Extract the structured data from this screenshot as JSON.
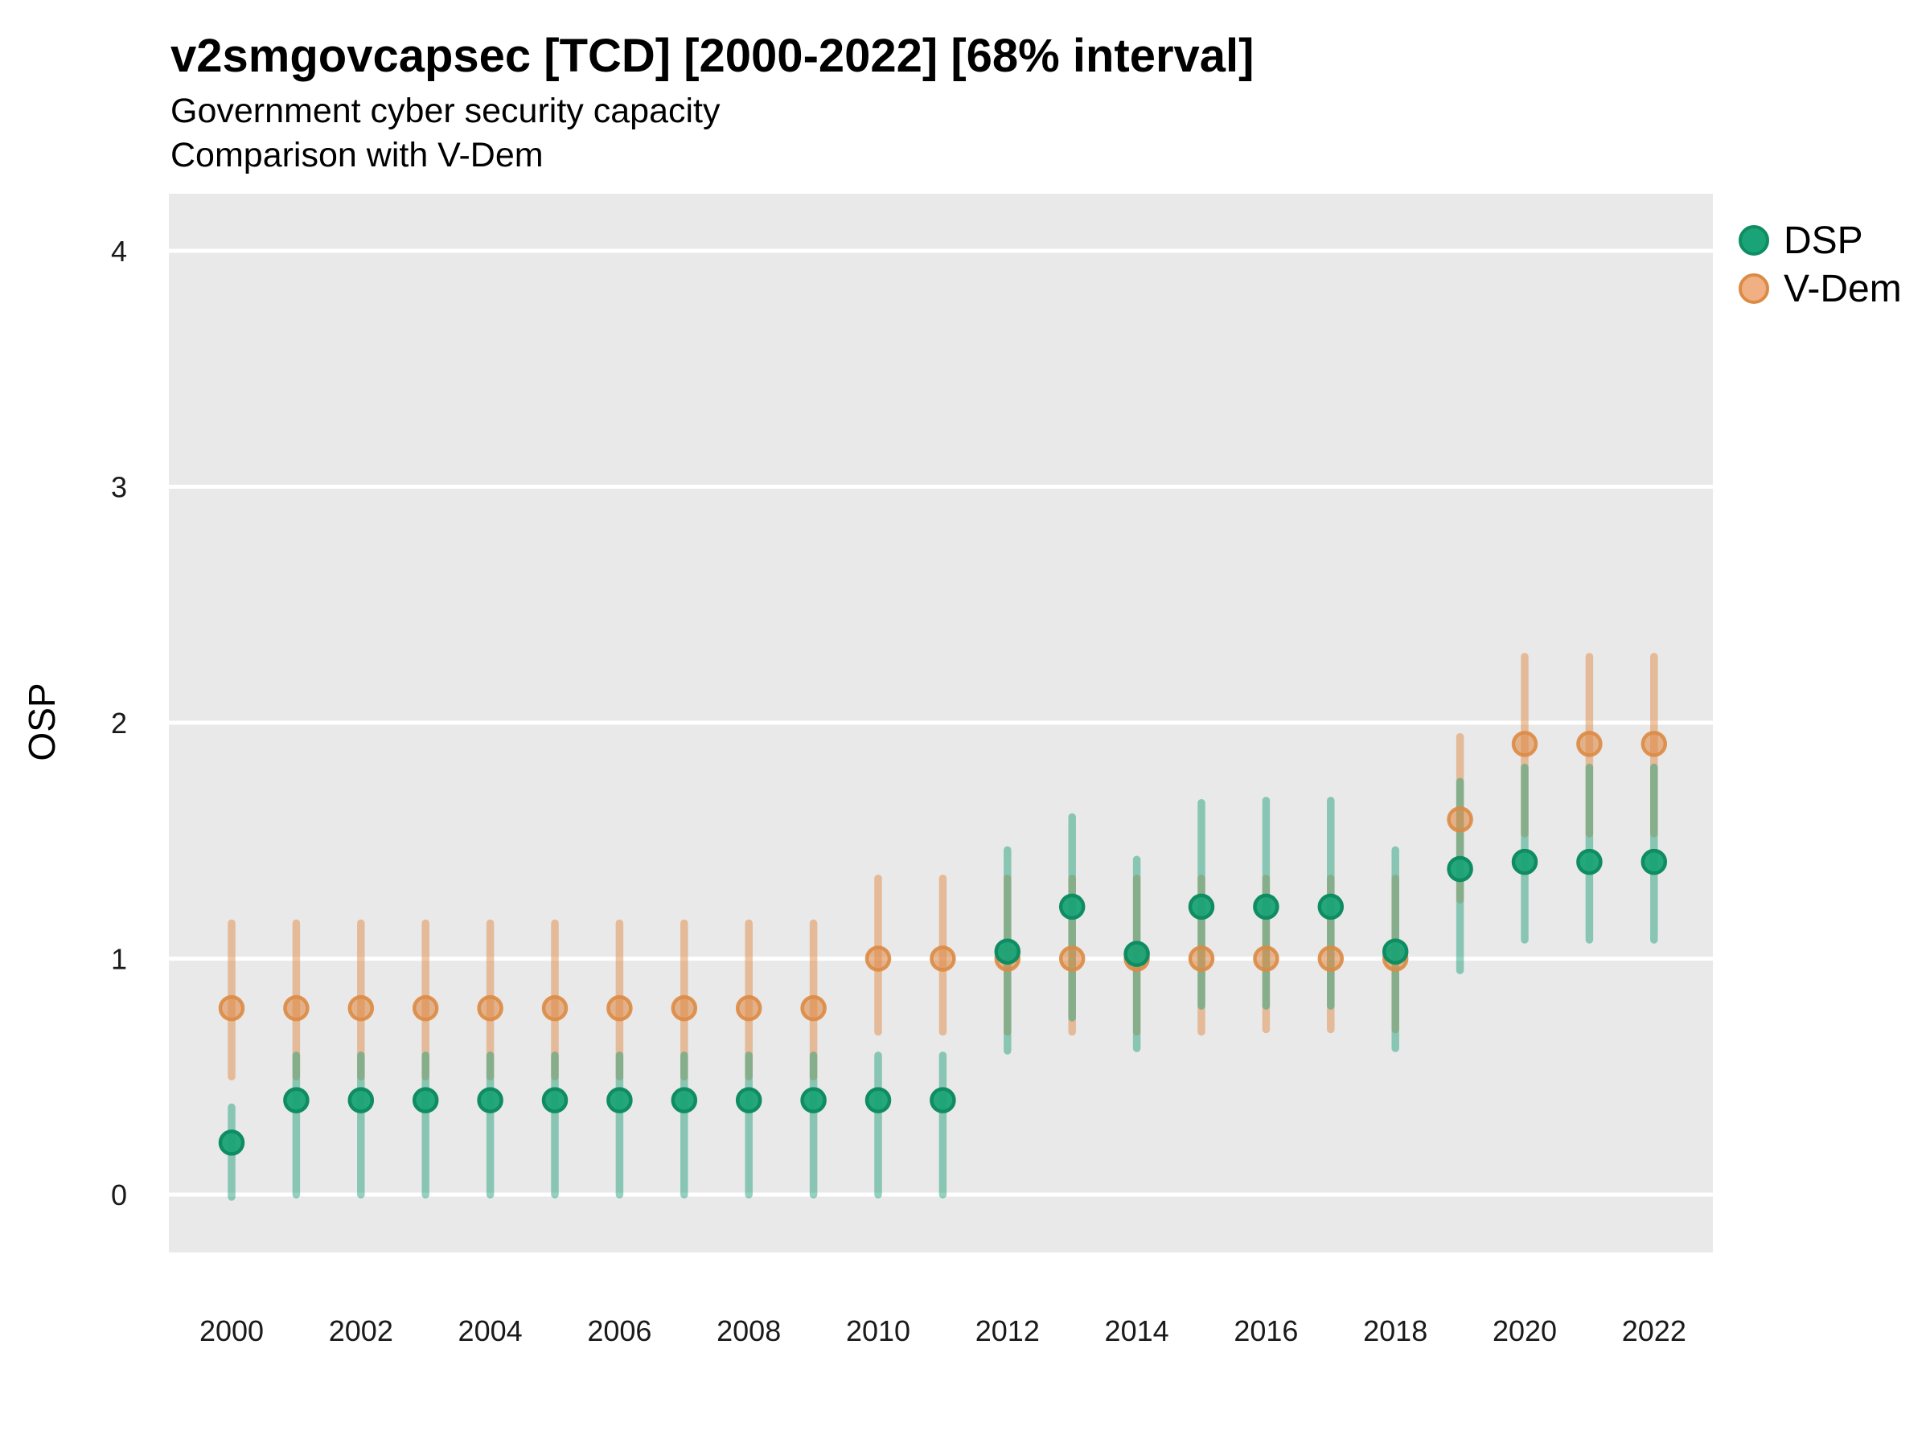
{
  "chart_data": {
    "type": "pointrange",
    "title": "v2smgovcapsec [TCD] [2000-2022] [68% interval]",
    "subtitle1": "Government cyber security capacity",
    "subtitle2": "Comparison with V-Dem",
    "ylabel": "OSP",
    "interval": "68%",
    "grid": "major-horizontal-only",
    "legend_position": "right",
    "panel_bg": "#E9E9E9",
    "grid_color": "#FFFFFF",
    "tick_label_color": "#1a1a1a",
    "x_tick_labels": [
      2000,
      2002,
      2004,
      2006,
      2008,
      2010,
      2012,
      2014,
      2016,
      2018,
      2020,
      2022
    ],
    "y_tick_labels": [
      0,
      1,
      2,
      3,
      4
    ],
    "xlim": [
      1999.0,
      2022.9
    ],
    "ylim": [
      -0.27,
      4.24
    ],
    "years": [
      2000,
      2001,
      2002,
      2003,
      2004,
      2005,
      2006,
      2007,
      2008,
      2009,
      2010,
      2011,
      2012,
      2013,
      2014,
      2015,
      2016,
      2017,
      2018,
      2019,
      2020,
      2021,
      2022
    ],
    "series": [
      {
        "name": "DSP",
        "color": "#1FA179",
        "point_fill": "#1AA376",
        "point_stroke": "#0F8C62",
        "bar_opacity": 0.48,
        "point_fill_opacity": 0.95,
        "values": [
          0.22,
          0.4,
          0.4,
          0.4,
          0.4,
          0.4,
          0.4,
          0.4,
          0.4,
          0.4,
          0.4,
          0.4,
          1.03,
          1.22,
          1.02,
          1.22,
          1.22,
          1.22,
          1.03,
          1.38,
          1.41,
          1.41,
          1.41
        ],
        "lower": [
          -0.01,
          0.0,
          0.0,
          0.0,
          0.0,
          0.0,
          0.0,
          0.0,
          0.0,
          0.0,
          0.0,
          0.0,
          0.61,
          0.75,
          0.62,
          0.8,
          0.8,
          0.8,
          0.62,
          0.95,
          1.08,
          1.08,
          1.08
        ],
        "upper": [
          0.37,
          0.59,
          0.59,
          0.59,
          0.59,
          0.59,
          0.59,
          0.59,
          0.59,
          0.59,
          0.59,
          0.59,
          1.46,
          1.6,
          1.42,
          1.66,
          1.67,
          1.67,
          1.46,
          1.75,
          1.81,
          1.81,
          1.81
        ]
      },
      {
        "name": "V-Dem",
        "color": "#E08C49",
        "point_fill": "#F0B083",
        "point_stroke": "#DC8B44",
        "bar_opacity": 0.5,
        "point_fill_opacity": 0.6,
        "values": [
          0.79,
          0.79,
          0.79,
          0.79,
          0.79,
          0.79,
          0.79,
          0.79,
          0.79,
          0.79,
          1.0,
          1.0,
          1.0,
          1.0,
          1.0,
          1.0,
          1.0,
          1.0,
          1.0,
          1.59,
          1.91,
          1.91,
          1.91
        ],
        "lower": [
          0.5,
          0.5,
          0.5,
          0.5,
          0.5,
          0.5,
          0.5,
          0.5,
          0.5,
          0.5,
          0.69,
          0.69,
          0.69,
          0.69,
          0.69,
          0.69,
          0.7,
          0.7,
          0.7,
          1.25,
          1.53,
          1.53,
          1.53
        ],
        "upper": [
          1.15,
          1.15,
          1.15,
          1.15,
          1.15,
          1.15,
          1.15,
          1.15,
          1.15,
          1.15,
          1.34,
          1.34,
          1.34,
          1.34,
          1.34,
          1.34,
          1.34,
          1.34,
          1.34,
          1.94,
          2.28,
          2.28,
          2.28
        ]
      }
    ],
    "legend": {
      "items": [
        {
          "label": "DSP"
        },
        {
          "label": "V-Dem"
        }
      ]
    }
  }
}
